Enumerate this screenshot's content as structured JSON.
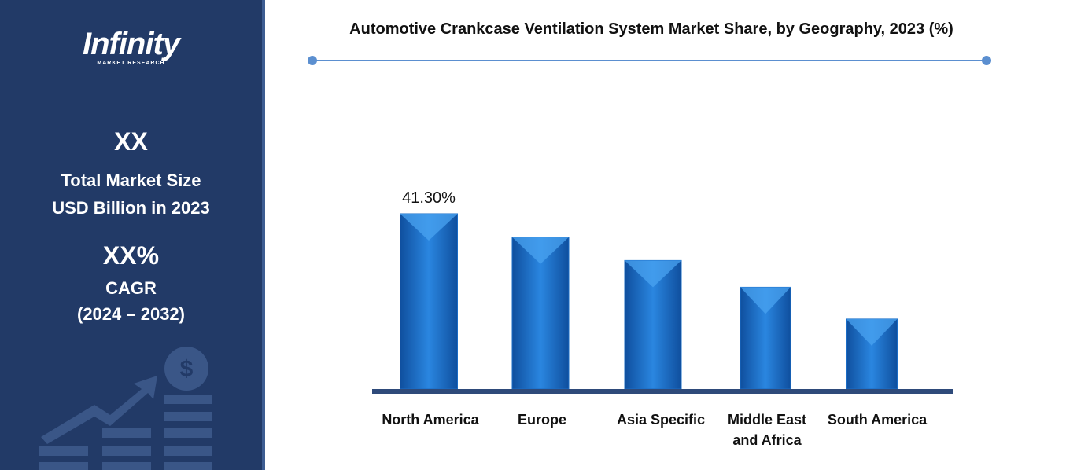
{
  "sidebar": {
    "logo": "Infinity",
    "logo_subtitle": "MARKET RESEARCH",
    "market_size": "XX",
    "market_size_label": "Total Market Size",
    "market_size_unit": "USD Billion in 2023",
    "cagr": "XX%",
    "cagr_label": "CAGR",
    "cagr_period": "(2024 – 2032)"
  },
  "chart_data": {
    "type": "bar",
    "title": "Automotive Crankcase Ventilation System Market Share, by Geography, 2023 (%)",
    "categories": [
      "North America",
      "Europe",
      "Asia Specific",
      "Middle East and Africa",
      "South America"
    ],
    "values": [
      41.3,
      35.8,
      30.3,
      24.0,
      16.5
    ],
    "value_labels": [
      "41.30%",
      null,
      null,
      null,
      null
    ],
    "color": "#1a6cc6"
  }
}
